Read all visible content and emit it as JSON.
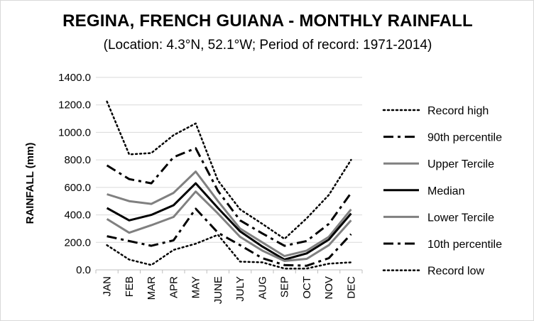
{
  "chart_data": {
    "type": "line",
    "title": "REGINA, FRENCH GUIANA - MONTHLY RAINFALL",
    "subtitle": "(Location: 4.3°N, 52.1°W; Period of record: 1971-2014)",
    "ylabel": "RAINFALL (mm)",
    "xlabel": "",
    "ylim": [
      0,
      1400
    ],
    "yticks": [
      "0.0",
      "200.0",
      "400.0",
      "600.0",
      "800.0",
      "1000.0",
      "1200.0",
      "1400.0"
    ],
    "grid": true,
    "legend_position": "right",
    "categories": [
      "JAN",
      "FEB",
      "MAR",
      "APR",
      "MAY",
      "JUNE",
      "JULY",
      "AUG",
      "SEP",
      "OCT",
      "NOV",
      "DEC"
    ],
    "series": [
      {
        "name": "Record high",
        "style": "dotted",
        "color": "#000000",
        "values": [
          1225,
          840,
          850,
          980,
          1065,
          650,
          440,
          335,
          225,
          375,
          545,
          800
        ]
      },
      {
        "name": "90th percentile",
        "style": "dashdot",
        "color": "#000000",
        "values": [
          760,
          660,
          630,
          820,
          885,
          575,
          360,
          265,
          175,
          210,
          335,
          560
        ]
      },
      {
        "name": "Upper Tercile",
        "style": "solid",
        "color": "#808080",
        "values": [
          550,
          500,
          480,
          560,
          715,
          500,
          300,
          200,
          100,
          140,
          240,
          440
        ]
      },
      {
        "name": "Median",
        "style": "solid",
        "color": "#000000",
        "values": [
          450,
          360,
          400,
          470,
          630,
          450,
          280,
          170,
          75,
          120,
          220,
          410
        ]
      },
      {
        "name": "Lower Tercile",
        "style": "solid",
        "color": "#808080",
        "values": [
          370,
          270,
          325,
          385,
          570,
          410,
          240,
          140,
          65,
          80,
          180,
          360
        ]
      },
      {
        "name": "10th percentile",
        "style": "dashdot",
        "color": "#000000",
        "values": [
          245,
          210,
          175,
          215,
          445,
          270,
          180,
          85,
          35,
          30,
          85,
          260
        ]
      },
      {
        "name": "Record low",
        "style": "dotted",
        "color": "#000000",
        "values": [
          180,
          75,
          35,
          145,
          190,
          255,
          60,
          55,
          10,
          10,
          45,
          55
        ]
      }
    ]
  }
}
